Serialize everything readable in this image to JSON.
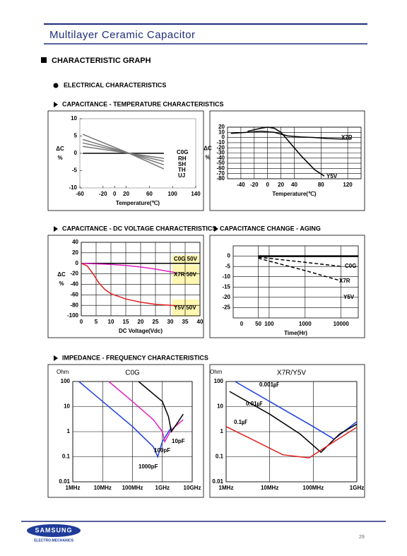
{
  "header": {
    "title": "Multilayer Ceramic Capacitor"
  },
  "section": "CHARACTERISTIC GRAPH",
  "subsection": "ELECTRICAL CHARACTERISTICS",
  "headings": [
    "CAPACITANCE - TEMPERATURE CHARACTERISTICS",
    "CAPACITANCE - DC VOLTAGE CHARACTERISTICS",
    "CAPACITANCE CHANGE - AGING",
    "IMPEDANCE - FREQUENCY CHARACTERISTICS"
  ],
  "footer": {
    "brand": "SAMSUNG",
    "division": "ELECTRO-MECHANICS",
    "page": "29"
  },
  "chart_data": [
    {
      "type": "line",
      "xlabel": "Temperature(℃)",
      "ylabel": "ΔC",
      "yunit": "%",
      "xlim": [
        -60,
        140
      ],
      "xticks": [
        -60,
        -20,
        0,
        20,
        60,
        100,
        140
      ],
      "ylim": [
        -10,
        10
      ],
      "yticks": [
        10,
        5,
        0,
        -5,
        -10
      ],
      "grid": false,
      "series": [
        {
          "name": "C0G",
          "color": "#000000",
          "x": [
            -55,
            25,
            85
          ],
          "values": [
            0,
            0,
            0
          ]
        },
        {
          "name": "RH",
          "color": "#777777",
          "x": [
            -55,
            25,
            85
          ],
          "values": [
            2,
            0,
            -1.5
          ]
        },
        {
          "name": "SH",
          "color": "#777777",
          "x": [
            -55,
            25,
            85
          ],
          "values": [
            3,
            0,
            -2.3
          ]
        },
        {
          "name": "TH",
          "color": "#777777",
          "x": [
            -55,
            25,
            85
          ],
          "values": [
            4,
            0,
            -3.3
          ]
        },
        {
          "name": "UJ",
          "color": "#777777",
          "x": [
            -55,
            25,
            85
          ],
          "values": [
            5.5,
            0,
            -4.5
          ]
        }
      ]
    },
    {
      "type": "line",
      "xlabel": "Temperature(℃)",
      "ylabel": "ΔC",
      "yunit": "%",
      "xlim": [
        -60,
        140
      ],
      "xticks": [
        -40,
        -20,
        0,
        20,
        40,
        80,
        120
      ],
      "ylim": [
        -80,
        20
      ],
      "yticks": [
        20,
        10,
        0,
        -10,
        -20,
        -30,
        -40,
        -50,
        -60,
        -70,
        -80
      ],
      "grid": true,
      "series": [
        {
          "name": "X7R",
          "color": "#000000",
          "x": [
            -55,
            -30,
            -10,
            10,
            30,
            50,
            70,
            90,
            110,
            125
          ],
          "values": [
            8,
            10,
            12,
            10,
            3,
            1,
            0,
            -2,
            -3,
            -3
          ]
        },
        {
          "name": "Y5V",
          "color": "#000000",
          "x": [
            -30,
            -10,
            0,
            10,
            20,
            30,
            50,
            70,
            85
          ],
          "values": [
            12,
            18,
            20,
            18,
            10,
            -5,
            -35,
            -62,
            -75
          ]
        }
      ]
    },
    {
      "type": "line",
      "xlabel": "DC Voltage(Vdc)",
      "ylabel": "ΔC",
      "yunit": "%",
      "xlim": [
        0,
        40
      ],
      "xticks": [
        0,
        5,
        10,
        15,
        20,
        25,
        30,
        35,
        40
      ],
      "ylim": [
        -100,
        40
      ],
      "yticks": [
        40,
        20,
        0,
        -20,
        -40,
        -60,
        -80,
        -100
      ],
      "grid": true,
      "series": [
        {
          "name": "C0G 50V",
          "color": "#000000",
          "x": [
            0,
            40
          ],
          "values": [
            0,
            0
          ]
        },
        {
          "name": "X7R 50V",
          "color": "#e020c0",
          "x": [
            0,
            5,
            10,
            15,
            20,
            25,
            30,
            32
          ],
          "values": [
            0,
            -1,
            -2,
            -4,
            -7,
            -11,
            -16,
            -18
          ]
        },
        {
          "name": "Y5V 50V",
          "color": "#e02020",
          "x": [
            0,
            2,
            4,
            6,
            8,
            10,
            15,
            20,
            25,
            30,
            32
          ],
          "values": [
            0,
            -5,
            -20,
            -38,
            -50,
            -58,
            -68,
            -74,
            -78,
            -80,
            -81
          ]
        }
      ]
    },
    {
      "type": "line",
      "xlabel": "Time(Hr)",
      "xscale": "log",
      "x_origin_label": "0",
      "xlim": [
        10,
        30000
      ],
      "xticks": [
        50,
        100,
        1000,
        10000
      ],
      "ylim": [
        -30,
        5
      ],
      "yticks": [
        0,
        -5,
        -10,
        -15,
        -20,
        -25
      ],
      "grid": true,
      "series": [
        {
          "name": "C0G",
          "color": "#000000",
          "x": [
            50,
            30000
          ],
          "values": [
            0,
            0
          ]
        },
        {
          "name": "X7R",
          "color": "#000000",
          "dash": true,
          "x": [
            50,
            1000,
            10000
          ],
          "values": [
            -0.5,
            -3,
            -5
          ]
        },
        {
          "name": "Y5V",
          "color": "#000000",
          "dash": true,
          "x": [
            50,
            1000,
            10000
          ],
          "values": [
            -1,
            -7,
            -12
          ]
        }
      ]
    },
    {
      "type": "line",
      "title": "C0G",
      "ylabel": "Ohm",
      "xscale": "log",
      "yscale": "log",
      "xlim": [
        1000000,
        10000000000
      ],
      "xticks": [
        {
          "value": 1000000,
          "label": "1MHz"
        },
        {
          "value": 10000000,
          "label": "10MHz"
        },
        {
          "value": 100000000,
          "label": "100MHz"
        },
        {
          "value": 1000000000,
          "label": "1GHz"
        },
        {
          "value": 10000000000,
          "label": "10GHz"
        }
      ],
      "ylim": [
        0.01,
        100
      ],
      "yticks": [
        100,
        10,
        1,
        0.1,
        0.01
      ],
      "grid": true,
      "series": [
        {
          "name": "1000pF",
          "color": "#2040e0",
          "x": [
            1600000,
            10000000,
            100000000,
            500000000,
            700000000,
            1000000000,
            2000000000
          ],
          "values": [
            100,
            16,
            1.6,
            0.25,
            0.1,
            0.4,
            1.5
          ]
        },
        {
          "name": "100pF",
          "color": "#e020c0",
          "x": [
            16000000,
            100000000,
            500000000,
            1000000000,
            1200000000,
            2000000000,
            5000000000
          ],
          "values": [
            100,
            16,
            3,
            1,
            0.4,
            1.2,
            3
          ]
        },
        {
          "name": "10pF",
          "color": "#000000",
          "x": [
            160000000,
            1000000000,
            1600000000,
            2000000000,
            3000000000,
            5000000000
          ],
          "values": [
            100,
            16,
            4,
            1,
            2,
            5
          ]
        }
      ]
    },
    {
      "type": "line",
      "title": "X7R/Y5V",
      "ylabel": "Ohm",
      "xscale": "log",
      "yscale": "log",
      "xlim": [
        1000000,
        1000000000
      ],
      "xticks": [
        {
          "value": 1000000,
          "label": "1MHz"
        },
        {
          "value": 10000000,
          "label": "10MHz"
        },
        {
          "value": 100000000,
          "label": "100MHz"
        },
        {
          "value": 1000000000,
          "label": "1GHz"
        }
      ],
      "ylim": [
        0.01,
        100
      ],
      "yticks": [
        100,
        10,
        1,
        0.1,
        0.01
      ],
      "grid": true,
      "series": [
        {
          "name": "0.001㎌",
          "color": "#2040e0",
          "x": [
            1600000,
            10000000,
            100000000,
            300000000,
            500000000,
            1000000000
          ],
          "values": [
            100,
            16,
            1.6,
            0.5,
            1,
            2.5
          ]
        },
        {
          "name": "0.01㎌",
          "color": "#000000",
          "x": [
            1200000,
            10000000,
            50000000,
            150000000,
            400000000,
            1000000000
          ],
          "values": [
            40,
            5,
            0.8,
            0.15,
            0.8,
            2
          ]
        },
        {
          "name": "0.1㎌",
          "color": "#e02020",
          "x": [
            1000000,
            5000000,
            20000000,
            80000000,
            300000000,
            1000000000
          ],
          "values": [
            1.6,
            0.4,
            0.12,
            0.09,
            0.4,
            1.5
          ]
        }
      ]
    }
  ]
}
